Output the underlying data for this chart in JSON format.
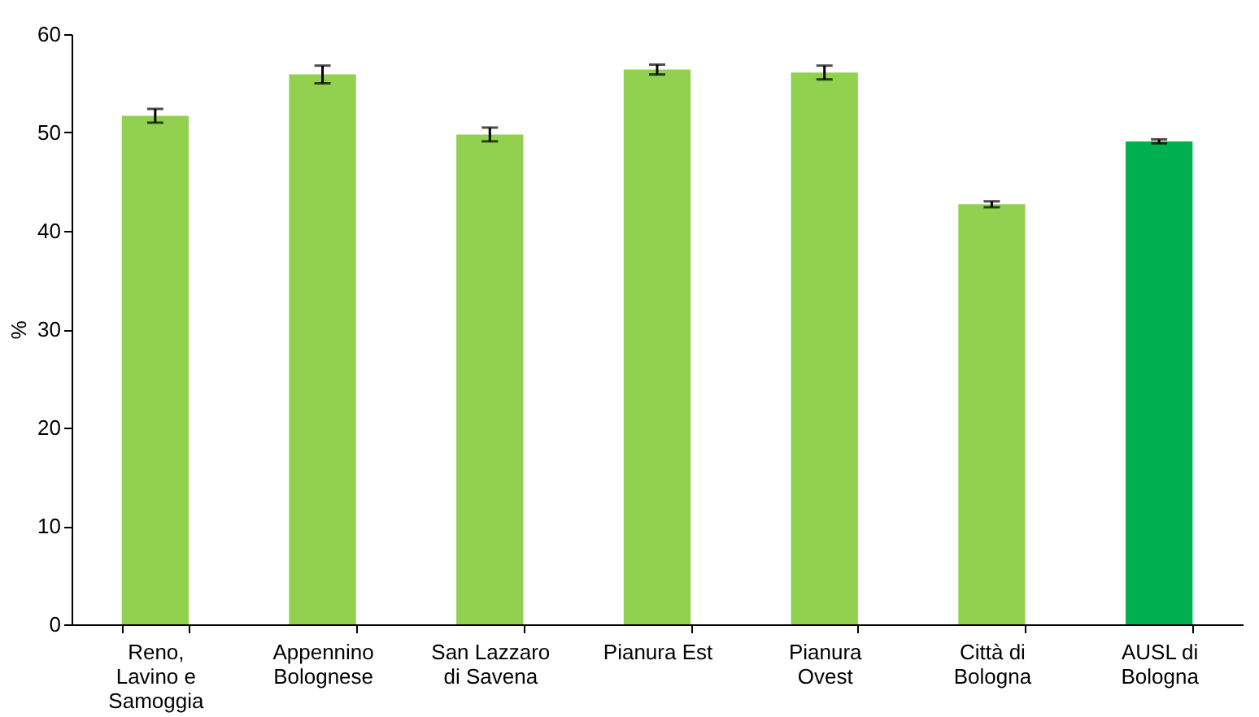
{
  "chart_data": {
    "type": "bar",
    "ylabel": "%",
    "categories": [
      "Reno, Lavino e Samoggia",
      "Appennino Bolognese",
      "San Lazzaro di Savena",
      "Pianura Est",
      "Pianura Ovest",
      "Città di Bologna",
      "AUSL di Bologna"
    ],
    "values": [
      51.7,
      55.9,
      49.8,
      56.4,
      56.1,
      42.7,
      49.1
    ],
    "errors": [
      0.7,
      0.9,
      0.7,
      0.5,
      0.7,
      0.3,
      0.2
    ],
    "colors": [
      "#92d050",
      "#92d050",
      "#92d050",
      "#92d050",
      "#92d050",
      "#92d050",
      "#00b050"
    ],
    "ylim": [
      0,
      60
    ],
    "yticks": [
      0,
      10,
      20,
      30,
      40,
      50,
      60
    ],
    "grid": false
  }
}
